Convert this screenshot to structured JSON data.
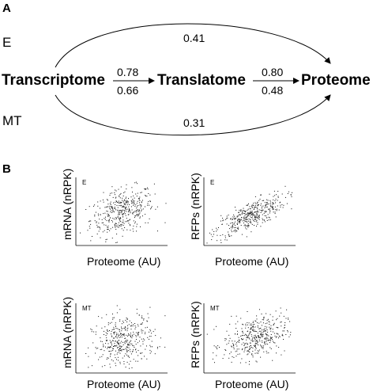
{
  "panel_a": {
    "label": "A",
    "conditions": {
      "top": "E",
      "bottom": "MT"
    },
    "nodes": {
      "left": "Transcriptome",
      "middle": "Translatome",
      "right": "Proteome"
    },
    "correlations": {
      "direct_E": "0.41",
      "direct_MT": "0.31",
      "transcriptome_translatome_E": "0.78",
      "transcriptome_translatome_MT": "0.66",
      "translatome_proteome_E": "0.80",
      "translatome_proteome_MT": "0.48"
    }
  },
  "panel_b": {
    "label": "B",
    "x_label": "Proteome (AU)",
    "plots": [
      {
        "ylabel": "mRNA (nRPK)",
        "tag": "E"
      },
      {
        "ylabel": "RFPs (nRPK)",
        "tag": "E"
      },
      {
        "ylabel": "mRNA (nRPK)",
        "tag": "MT"
      },
      {
        "ylabel": "RFPs (nRPK)",
        "tag": "MT"
      }
    ]
  }
}
